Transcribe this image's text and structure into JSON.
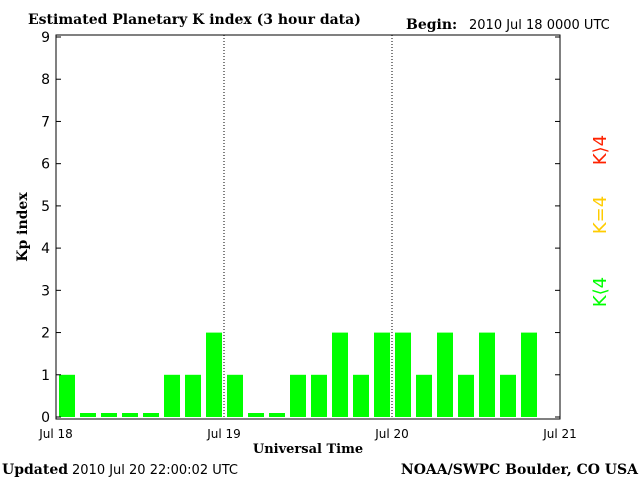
{
  "chart_data": {
    "type": "bar",
    "title": "Estimated Planetary K index (3 hour data)",
    "begin_label": "Begin:",
    "begin_value": "2010 Jul 18 0000 UTC",
    "ylabel": "Kp index",
    "xlabel": "Universal Time",
    "ylim": [
      0,
      9
    ],
    "yticks": [
      "0",
      "1",
      "2",
      "3",
      "4",
      "5",
      "6",
      "7",
      "8",
      "9"
    ],
    "xticks": [
      "Jul 18",
      "Jul 19",
      "Jul 20",
      "Jul 21"
    ],
    "values": [
      1,
      0,
      0,
      0,
      0,
      1,
      1,
      2,
      1,
      0,
      0,
      1,
      1,
      2,
      1,
      2,
      2,
      1,
      2,
      1,
      2,
      1,
      2
    ],
    "bar_color": "#00ff00",
    "legend": [
      {
        "label": "K<4",
        "display": "K⟨4",
        "color": "#00ff00"
      },
      {
        "label": "K=4",
        "display": "K=4",
        "color": "#ffcc00"
      },
      {
        "label": "K>4",
        "display": "K⟩4",
        "color": "#ff2200"
      }
    ],
    "grid": false,
    "day_separators": true
  },
  "footer": {
    "updated_label": "Updated",
    "updated_value": "2010 Jul 20 22:00:02 UTC",
    "source": "NOAA/SWPC Boulder, CO USA"
  }
}
